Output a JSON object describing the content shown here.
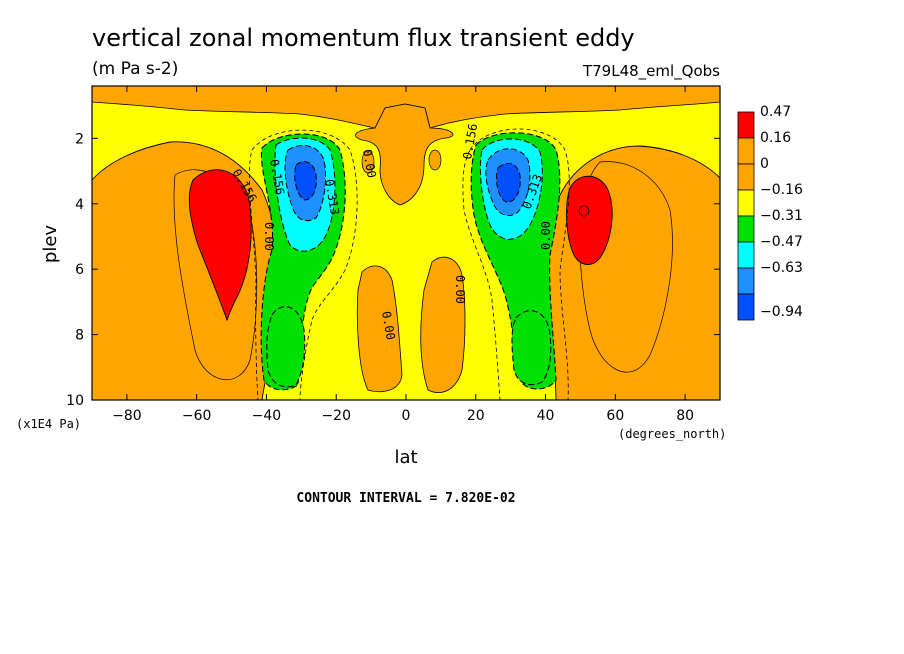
{
  "chart_data": {
    "type": "heatmap",
    "title": "vertical zonal momentum flux transient eddy",
    "units": "(m Pa s-2)",
    "run_label": "T79L48_eml_Qobs",
    "xlabel": "lat",
    "x_units": "(degrees_north)",
    "ylabel": "plev",
    "y_units": "(x1E4 Pa)",
    "xlim": [
      -90,
      90
    ],
    "ylim": [
      10,
      0.4
    ],
    "x_ticks": [
      -80,
      -60,
      -40,
      -20,
      0,
      20,
      40,
      60,
      80
    ],
    "x_tick_labels": [
      "−80",
      "−60",
      "−40",
      "−20",
      "0",
      "20",
      "40",
      "60",
      "80"
    ],
    "y_ticks": [
      2,
      4,
      6,
      8,
      10
    ],
    "y_tick_labels": [
      "2",
      "4",
      "6",
      "8",
      "10"
    ],
    "legend": {
      "placement": "right",
      "levels": [
        "0.47",
        "0.16",
        "0",
        "−0.16",
        "−0.31",
        "−0.47",
        "−0.63",
        "−0.94"
      ],
      "colors": [
        "#ff0000",
        "#ffa500",
        "#ffa500",
        "#ffff00",
        "#00e000",
        "#00ffff",
        "#1e90ff",
        "#0050ff"
      ]
    },
    "contour_labels": [
      "0.156",
      "0.00",
      "0.156",
      "0.313",
      "0.00",
      "0.00",
      "0.00",
      "0.156",
      "0.313",
      "0.00"
    ],
    "contour_interval": "CONTOUR INTERVAL = 7.820E-02",
    "features": [
      {
        "kind": "positive max",
        "lat": -52,
        "plev": 4.2,
        "value": 0.47
      },
      {
        "kind": "negative min",
        "lat": -29,
        "plev": 3.2,
        "value": -0.94
      },
      {
        "kind": "negative min",
        "lat": 29,
        "plev": 3.2,
        "value": -0.94
      },
      {
        "kind": "positive max",
        "lat": 52,
        "plev": 4.0,
        "value": 0.47
      }
    ]
  },
  "colors": {
    "red": "#ff0000",
    "orange": "#ffa500",
    "yellow": "#ffff00",
    "green": "#00e000",
    "cyan": "#00ffff",
    "blue": "#1e90ff",
    "deepblue": "#0050ff"
  }
}
